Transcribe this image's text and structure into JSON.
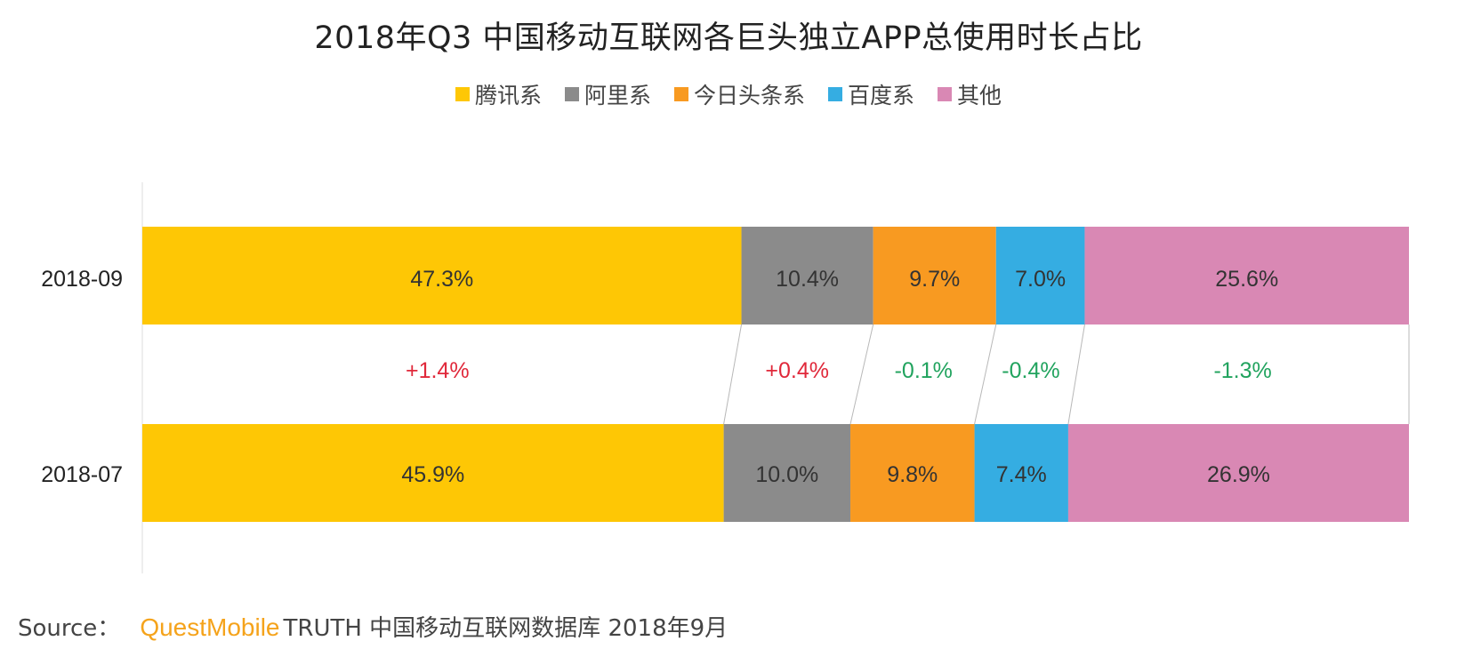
{
  "chart_data": {
    "type": "bar",
    "orientation": "horizontal-stacked-100",
    "title": "2018年Q3 中国移动互联网各巨头独立APP总使用时长占比",
    "legend_position": "top-center",
    "categories": [
      "2018-09",
      "2018-07"
    ],
    "series": [
      {
        "name": "腾讯系",
        "color": "#fec705",
        "values": [
          47.3,
          45.9
        ],
        "labels": [
          "47.3%",
          "45.9%"
        ],
        "change": "+1.4%",
        "change_color": "#e0283a"
      },
      {
        "name": "阿里系",
        "color": "#8b8b8b",
        "values": [
          10.4,
          10.0
        ],
        "labels": [
          "10.4%",
          "10.0%"
        ],
        "change": "+0.4%",
        "change_color": "#e0283a"
      },
      {
        "name": "今日头条系",
        "color": "#f89a21",
        "values": [
          9.7,
          9.8
        ],
        "labels": [
          "9.7%",
          "9.8%"
        ],
        "change": "-0.1%",
        "change_color": "#21a35e"
      },
      {
        "name": "百度系",
        "color": "#35ade2",
        "values": [
          7.0,
          7.4
        ],
        "labels": [
          "7.0%",
          "7.4%"
        ],
        "change": "-0.4%",
        "change_color": "#21a35e"
      },
      {
        "name": "其他",
        "color": "#d988b4",
        "values": [
          25.6,
          26.9
        ],
        "labels": [
          "25.6%",
          "26.9%"
        ],
        "change": "-1.3%",
        "change_color": "#21a35e"
      }
    ],
    "xlim": [
      0,
      100
    ]
  },
  "source": {
    "label": "Source：",
    "brand": "QuestMobile",
    "text": "TRUTH 中国移动互联网数据库 2018年9月"
  }
}
